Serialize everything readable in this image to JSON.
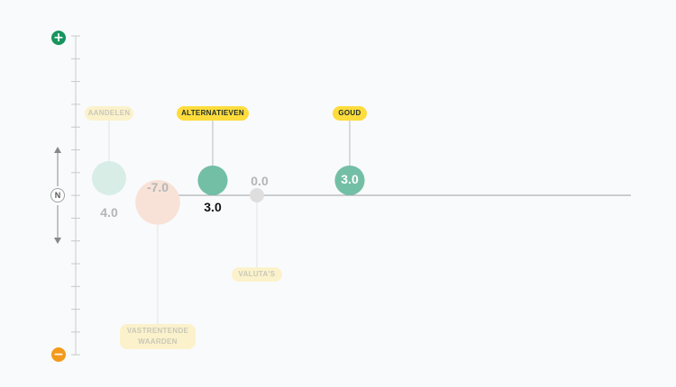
{
  "axis": {
    "top_symbol": "+",
    "bottom_symbol": "−",
    "neutral_label": "N",
    "top_color": "#16955d",
    "bottom_color": "#f39a1b"
  },
  "chart_data": {
    "type": "bubble",
    "categories": [
      "AANDELEN",
      "VASTRENTENDE WAARDEN",
      "ALTERNATIEVEN",
      "VALUTA'S",
      "GOUD"
    ],
    "values": [
      4.0,
      -7.0,
      3.0,
      0.0,
      3.0
    ],
    "value_labels": [
      "4.0",
      "-7.0",
      "3.0",
      "0.0",
      "3.0"
    ],
    "highlighted": [
      false,
      false,
      true,
      false,
      true
    ],
    "colors": {
      "positive_faded": "#d9ede7",
      "negative_faded": "#f8e2d8",
      "positive": "#73bfa6",
      "neutral": "#dedede",
      "pill_active": "#fddc3c",
      "pill_faded": "#fbf2cc"
    },
    "title": "",
    "xlabel": "",
    "ylabel": ""
  }
}
